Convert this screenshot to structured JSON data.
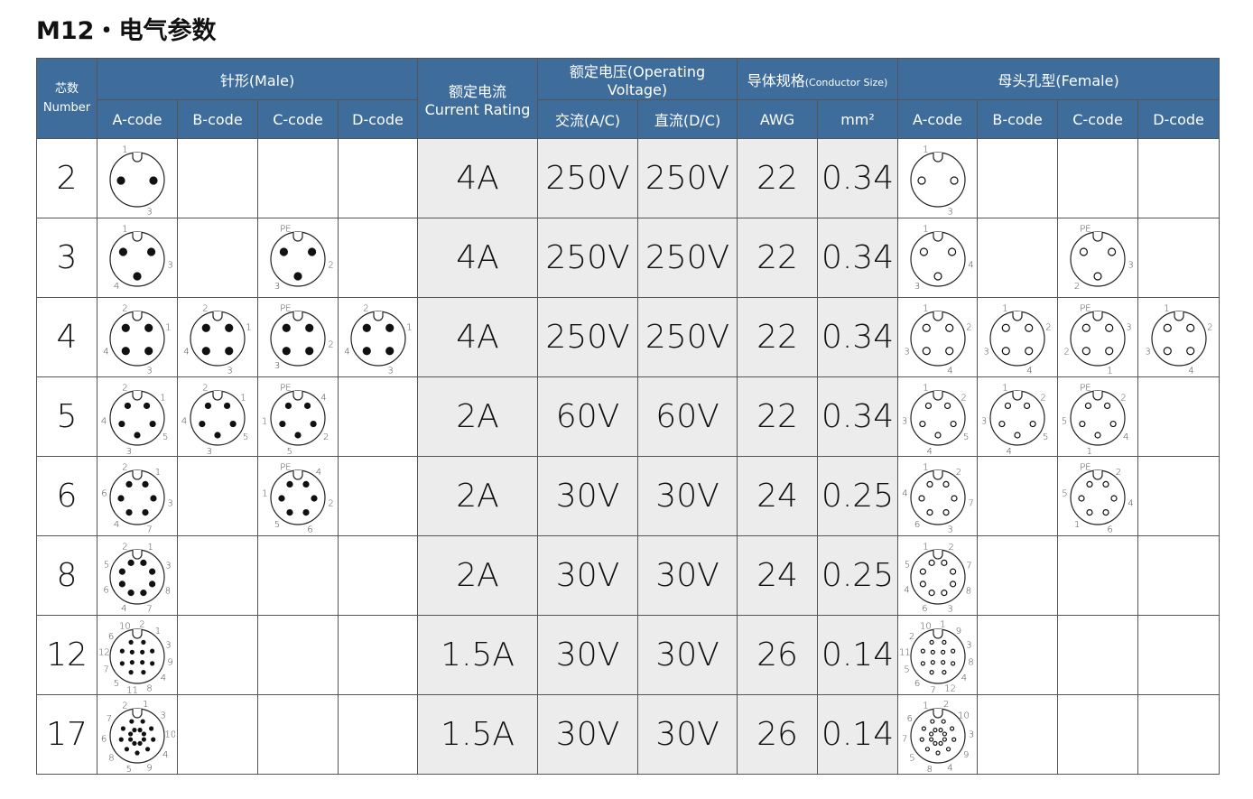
{
  "title": "M12・电气参数",
  "table": {
    "header": {
      "cores_cn": "芯数",
      "cores_en": "Number",
      "male": "针形(Male)",
      "current_cn": "额定电流",
      "current_en": "Current Rating",
      "voltage": "额定电压(Operating Voltage)",
      "conductor_cn": "导体规格",
      "conductor_en": "(Conductor Size)",
      "female": "母头孔型(Female)",
      "codes": [
        "A-code",
        "B-code",
        "C-code",
        "D-code"
      ],
      "ac": "交流(A/C)",
      "dc": "直流(D/C)",
      "awg": "AWG",
      "mm2": "mm²"
    },
    "rows": [
      {
        "cores": "2",
        "current": "4A",
        "ac": "250V",
        "dc": "250V",
        "awg": "22",
        "mm2": "0.34",
        "male": [
          [
            "1",
            "3"
          ],
          null,
          null,
          null
        ],
        "female": [
          [
            "1",
            "3"
          ],
          null,
          null,
          null
        ]
      },
      {
        "cores": "3",
        "current": "4A",
        "ac": "250V",
        "dc": "250V",
        "awg": "22",
        "mm2": "0.34",
        "male": [
          [
            "1",
            "3",
            "4"
          ],
          null,
          [
            "PE",
            "2",
            "3"
          ],
          null
        ],
        "female": [
          [
            "1",
            "4",
            "3"
          ],
          null,
          [
            "PE",
            "3",
            "2"
          ],
          null
        ]
      },
      {
        "cores": "4",
        "current": "4A",
        "ac": "250V",
        "dc": "250V",
        "awg": "22",
        "mm2": "0.34",
        "male": [
          [
            "2",
            "1",
            "3",
            "4"
          ],
          [
            "2",
            "1",
            "3",
            "4"
          ],
          [
            "PE",
            "2",
            "3"
          ],
          [
            "2",
            "1",
            "3",
            "4"
          ]
        ],
        "female": [
          [
            "1",
            "2",
            "4",
            "3"
          ],
          [
            "1",
            "2",
            "4",
            "3"
          ],
          [
            "PE",
            "3",
            "1",
            "2"
          ],
          [
            "1",
            "2",
            "4",
            "3"
          ]
        ]
      },
      {
        "cores": "5",
        "current": "2A",
        "ac": "60V",
        "dc": "60V",
        "awg": "22",
        "mm2": "0.34",
        "male": [
          [
            "2",
            "1",
            "5",
            "3",
            "4"
          ],
          [
            "2",
            "1",
            "5",
            "3",
            "4"
          ],
          [
            "PE",
            "4",
            "2",
            "5",
            "1"
          ],
          null
        ],
        "female": [
          [
            "1",
            "2",
            "5",
            "4",
            "3"
          ],
          [
            "1",
            "2",
            "5",
            "4",
            "3"
          ],
          [
            "PE",
            "2",
            "4",
            "1",
            "5"
          ],
          null
        ]
      },
      {
        "cores": "6",
        "current": "2A",
        "ac": "30V",
        "dc": "30V",
        "awg": "24",
        "mm2": "0.25",
        "male": [
          [
            "2",
            "1",
            "3",
            "7",
            "4",
            "6"
          ],
          null,
          [
            "PE",
            "4",
            "2",
            "6",
            "5",
            "1"
          ],
          null
        ],
        "female": [
          [
            "1",
            "2",
            "7",
            "3",
            "6",
            "4"
          ],
          null,
          [
            "PE",
            "2",
            "4",
            "6",
            "1",
            "5"
          ],
          null
        ]
      },
      {
        "cores": "8",
        "current": "2A",
        "ac": "30V",
        "dc": "30V",
        "awg": "24",
        "mm2": "0.25",
        "male": [
          [
            "2",
            "1",
            "3",
            "8",
            "7",
            "4",
            "6",
            "5"
          ],
          null,
          null,
          null
        ],
        "female": [
          [
            "1",
            "2",
            "7",
            "8",
            "3",
            "6",
            "4",
            "5"
          ],
          null,
          null,
          null
        ]
      },
      {
        "cores": "12",
        "current": "1.5A",
        "ac": "30V",
        "dc": "30V",
        "awg": "26",
        "mm2": "0.14",
        "male": [
          [
            "10",
            "2",
            "1",
            "3",
            "9",
            "4",
            "8",
            "11",
            "5",
            "7",
            "12",
            "6"
          ],
          null,
          null,
          null
        ],
        "female": [
          [
            "10",
            "1",
            "9",
            "3",
            "8",
            "4",
            "12",
            "7",
            "6",
            "5",
            "11",
            "2"
          ],
          null,
          null,
          null
        ]
      },
      {
        "cores": "17",
        "current": "1.5A",
        "ac": "30V",
        "dc": "30V",
        "awg": "26",
        "mm2": "0.14",
        "male": [
          [
            "2",
            "1",
            "3",
            "10",
            "4",
            "9",
            "5",
            "8",
            "6",
            "7"
          ],
          null,
          null,
          null
        ],
        "female": [
          [
            "1",
            "2",
            "10",
            "3",
            "9",
            "4",
            "8",
            "5",
            "7",
            "6"
          ],
          null,
          null,
          null
        ]
      }
    ]
  }
}
